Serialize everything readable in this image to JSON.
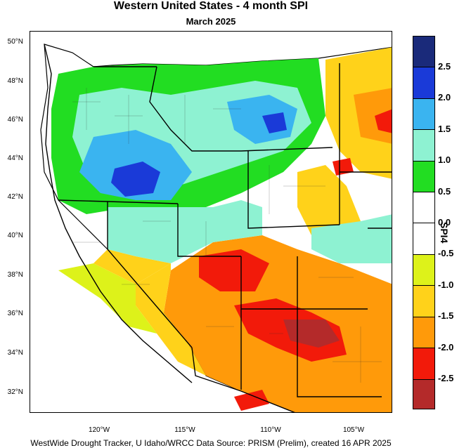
{
  "title": "Western United States - 4 month SPI",
  "subtitle": "March 2025",
  "footer": "WestWide Drought Tracker, U Idaho/WRCC Data Source: PRISM (Prelim), created 16 APR 2025",
  "colorbar": {
    "title": "SPI4",
    "labels": [
      "2.5",
      "2.0",
      "1.5",
      "1.0",
      "0.5",
      "0.0",
      "-0.5",
      "-1.0",
      "-1.5",
      "-2.0",
      "-2.5"
    ],
    "colors": [
      "#1a2a7a",
      "#1a3ad8",
      "#3ab4f0",
      "#8ef2d2",
      "#22dd22",
      "#ffffff",
      "#ffffff",
      "#ddf21a",
      "#ffd21a",
      "#ff9a0a",
      "#f21a0a",
      "#b42a2a"
    ]
  },
  "latitude_labels": [
    "50°N",
    "48°N",
    "46°N",
    "44°N",
    "42°N",
    "40°N",
    "38°N",
    "36°N",
    "34°N",
    "32°N"
  ],
  "longitude_labels": [
    "120°W",
    "115°W",
    "110°W",
    "105°W"
  ],
  "legend_colors": {
    "very_wet": "#1a3ad8",
    "wet": "#3ab4f0",
    "moderately_wet": "#8ef2d2",
    "slightly_wet": "#22dd22",
    "normal": "#ffffff",
    "slightly_dry": "#ddf21a",
    "moderately_dry": "#ffd21a",
    "dry": "#ff9a0a",
    "very_dry": "#f21a0a",
    "extremely_dry": "#b42a2a"
  }
}
